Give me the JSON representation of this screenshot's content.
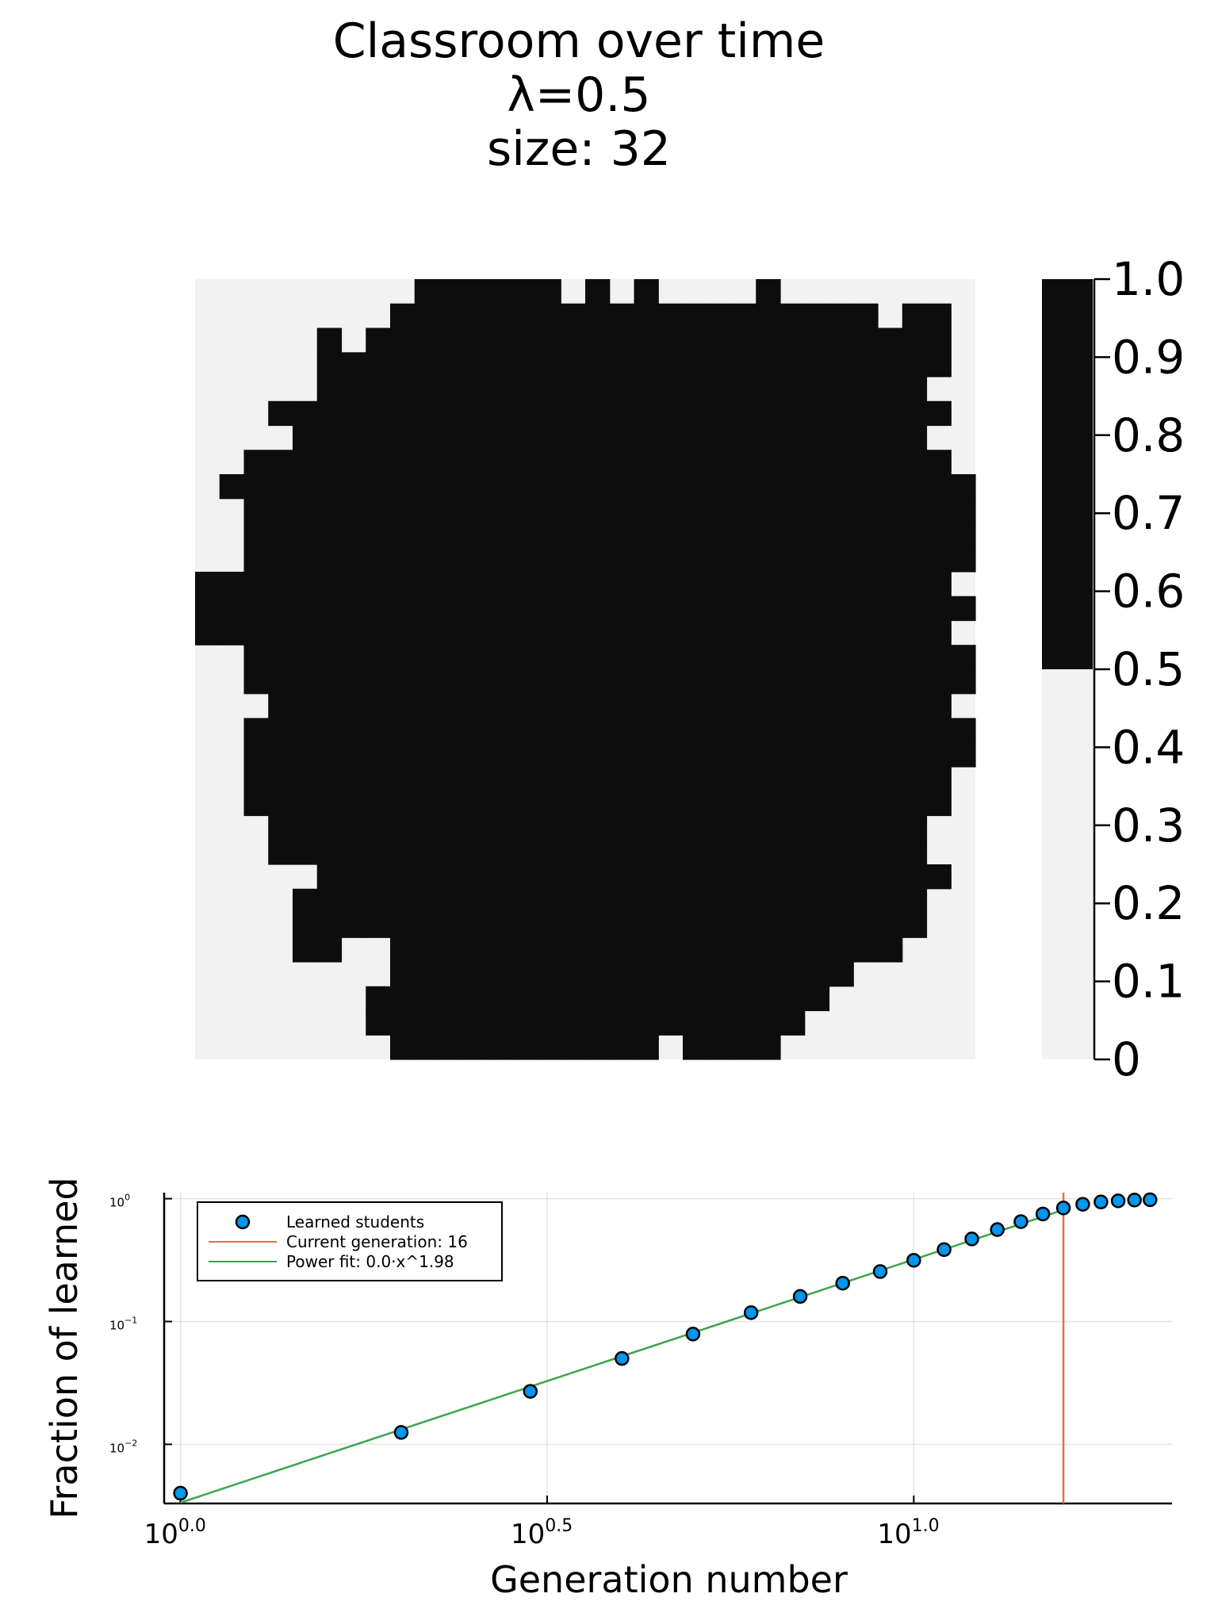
{
  "chart_data": [
    {
      "type": "heatmap",
      "title_lines": [
        "Classroom over time",
        "λ=0.5",
        "size: 32"
      ],
      "grid_size": 32,
      "colorbar": {
        "ticks": [
          "0",
          "0.1",
          "0.2",
          "0.3",
          "0.4",
          "0.5",
          "0.6",
          "0.7",
          "0.8",
          "0.9",
          "1.0"
        ],
        "range": [
          0,
          1
        ],
        "threshold": 0.5
      },
      "colors": {
        "learned": "#0d0d0d",
        "unlearned": "#f2f2f2"
      },
      "rows": [
        "00000000011111101010000100000000",
        "00000000111111111111111111110110",
        "00000101111111111111111111111110",
        "00000111111111111111111111111110",
        "00000111111111111111111111111100",
        "00011111111111111111111111111110",
        "00001111111111111111111111111100",
        "00111111111111111111111111111110",
        "01111111111111111111111111111111",
        "00111111111111111111111111111111",
        "00111111111111111111111111111111",
        "00111111111111111111111111111111",
        "11111111111111111111111111111110",
        "11111111111111111111111111111111",
        "11111111111111111111111111111110",
        "00111111111111111111111111111111",
        "00111111111111111111111111111111",
        "00011111111111111111111111111110",
        "00111111111111111111111111111111",
        "00111111111111111111111111111111",
        "00111111111111111111111111111110",
        "00111111111111111111111111111110",
        "00011111111111111111111111111100",
        "00011111111111111111111111111100",
        "00000111111111111111111111111110",
        "00001111111111111111111111111100",
        "00001111111111111111111111111100",
        "00001100111111111111111111111000",
        "00000000111111111111111111100000",
        "00000001111111111111111111000000",
        "00000001111111111111111110000000",
        "00000000111111111110111100000000"
      ]
    },
    {
      "type": "scatter",
      "xlabel": "Generation number",
      "ylabel": "Fraction of learned",
      "xscale": "log10",
      "yscale": "log10",
      "xlim": [
        0.95,
        22.5
      ],
      "ylim": [
        0.0033,
        1.12
      ],
      "xticks": [
        {
          "value": 1,
          "base": "10",
          "exp": "0.0"
        },
        {
          "value": 3.1623,
          "base": "10",
          "exp": "0.5"
        },
        {
          "value": 10,
          "base": "10",
          "exp": "1.0"
        }
      ],
      "yticks": [
        {
          "value": 1,
          "base": "10",
          "exp": "0"
        },
        {
          "value": 0.1,
          "base": "10",
          "exp": "−1"
        },
        {
          "value": 0.01,
          "base": "10",
          "exp": "−2"
        }
      ],
      "grid": true,
      "legend_position": "top-left",
      "series": [
        {
          "name": "Learned students",
          "color": "#0096ed",
          "x": [
            1,
            2,
            3,
            4,
            5,
            6,
            7,
            8,
            9,
            10,
            11,
            12,
            13,
            14,
            15,
            16,
            17,
            18,
            19,
            20,
            21
          ],
          "y": [
            0.004,
            0.0125,
            0.027,
            0.05,
            0.079,
            0.118,
            0.16,
            0.205,
            0.255,
            0.315,
            0.385,
            0.47,
            0.56,
            0.65,
            0.75,
            0.84,
            0.9,
            0.94,
            0.96,
            0.975,
            0.98
          ]
        },
        {
          "name": "Current generation: 16",
          "color": "#e26f46",
          "vline_x": 16
        },
        {
          "name": "Power fit: 0.0·x^1.98",
          "color": "#3da44d",
          "coef": 0.00335,
          "exponent": 1.98,
          "x_range": [
            1,
            16
          ]
        }
      ]
    }
  ]
}
